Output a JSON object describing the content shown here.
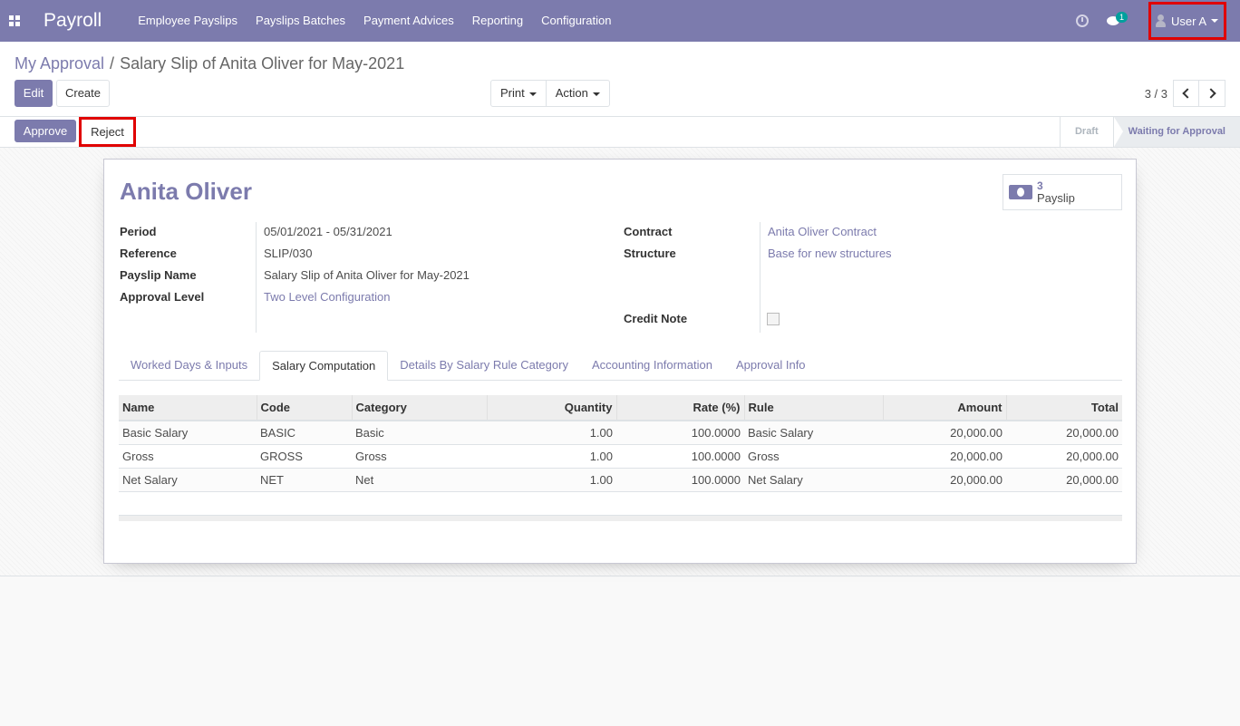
{
  "navbar": {
    "brand": "Payroll",
    "menu": [
      "Employee Payslips",
      "Payslips Batches",
      "Payment Advices",
      "Reporting",
      "Configuration"
    ],
    "chat_badge": "1",
    "user": "User A"
  },
  "breadcrumb": {
    "parent": "My Approval",
    "separator": "/",
    "current": "Salary Slip of Anita Oliver for May-2021"
  },
  "buttons": {
    "edit": "Edit",
    "create": "Create",
    "print": "Print",
    "action": "Action"
  },
  "pager": {
    "value": "3 / 3"
  },
  "statusbar": {
    "approve": "Approve",
    "reject": "Reject",
    "stages": [
      "Draft",
      "Waiting for Approval"
    ],
    "active_stage": "Waiting for Approval"
  },
  "sheet": {
    "employee_name": "Anita Oliver",
    "smart_button": {
      "count": "3",
      "label": "Payslip",
      "icon": "money-icon"
    },
    "left_fields": [
      {
        "label": "Period",
        "value": "05/01/2021 - 05/31/2021"
      },
      {
        "label": "Reference",
        "value": "SLIP/030"
      },
      {
        "label": "Payslip Name",
        "value": "Salary Slip of Anita Oliver for May-2021"
      },
      {
        "label": "Approval Level",
        "value": "Two Level Configuration"
      }
    ],
    "right_fields": [
      {
        "label": "Contract",
        "value": "Anita Oliver Contract"
      },
      {
        "label": "Structure",
        "value": "Base for new structures"
      },
      {
        "label": "Credit Note",
        "value": false
      }
    ],
    "tabs": [
      "Worked Days & Inputs",
      "Salary Computation",
      "Details By Salary Rule Category",
      "Accounting Information",
      "Approval Info"
    ],
    "active_tab": "Salary Computation",
    "table": {
      "columns": [
        "Name",
        "Code",
        "Category",
        "Quantity",
        "Rate (%)",
        "Rule",
        "Amount",
        "Total"
      ],
      "rows": [
        [
          "Basic Salary",
          "BASIC",
          "Basic",
          "1.00",
          "100.0000",
          "Basic Salary",
          "20,000.00",
          "20,000.00"
        ],
        [
          "Gross",
          "GROSS",
          "Gross",
          "1.00",
          "100.0000",
          "Gross",
          "20,000.00",
          "20,000.00"
        ],
        [
          "Net Salary",
          "NET",
          "Net",
          "1.00",
          "100.0000",
          "Net Salary",
          "20,000.00",
          "20,000.00"
        ]
      ]
    }
  },
  "colors": {
    "brand": "#7c7bad",
    "highlight": "#e00000",
    "badge": "#00a09d"
  }
}
